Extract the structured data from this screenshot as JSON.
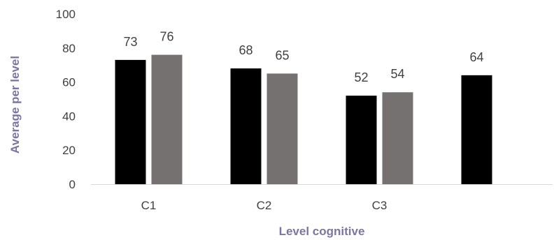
{
  "chart_data": {
    "type": "bar",
    "title": "",
    "xlabel": "Level cognitive",
    "ylabel": "Average per level",
    "ylim": [
      0,
      100
    ],
    "yticks": [
      0,
      20,
      40,
      60,
      80,
      100
    ],
    "grid": false,
    "legend": "none",
    "categories": [
      "C1",
      "C2",
      "C3",
      ""
    ],
    "series": [
      {
        "values": [
          73,
          68,
          52,
          64
        ],
        "color": "#000000"
      },
      {
        "values": [
          76,
          65,
          54,
          null
        ],
        "color": "#767171"
      }
    ]
  }
}
